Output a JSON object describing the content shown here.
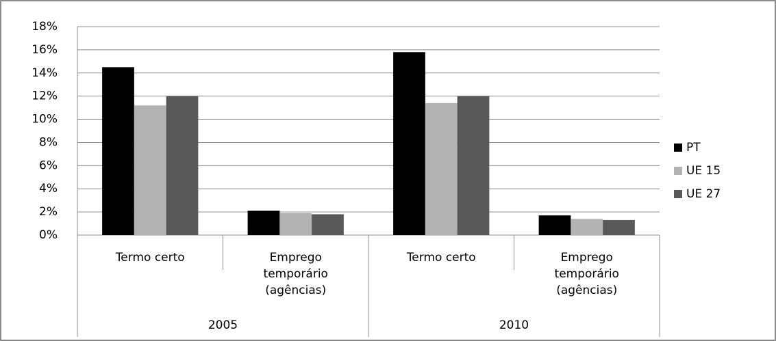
{
  "chart_data": {
    "type": "bar",
    "categories": [
      [
        "Termo certo"
      ],
      [
        "Emprego",
        "temporário",
        "(agências)"
      ],
      [
        "Termo certo"
      ],
      [
        "Emprego",
        "temporário",
        "(agências)"
      ]
    ],
    "category_groups": [
      "2005",
      "2010"
    ],
    "series": [
      {
        "name": "PT",
        "color": "#000000",
        "values": [
          14.5,
          2.1,
          15.8,
          1.7
        ]
      },
      {
        "name": "UE 15",
        "color": "#b3b3b3",
        "values": [
          11.2,
          1.9,
          11.4,
          1.4
        ]
      },
      {
        "name": "UE 27",
        "color": "#595959",
        "values": [
          12.0,
          1.8,
          12.0,
          1.3
        ]
      }
    ],
    "ylim": [
      0,
      18
    ],
    "yticks": [
      {
        "value": 0,
        "label": "0%"
      },
      {
        "value": 2,
        "label": "2%"
      },
      {
        "value": 4,
        "label": "4%"
      },
      {
        "value": 6,
        "label": "6%"
      },
      {
        "value": 8,
        "label": "8%"
      },
      {
        "value": 10,
        "label": "10%"
      },
      {
        "value": 12,
        "label": "12%"
      },
      {
        "value": 14,
        "label": "14%"
      },
      {
        "value": 16,
        "label": "16%"
      },
      {
        "value": 18,
        "label": "18%"
      }
    ],
    "grid": true,
    "legend": "right"
  }
}
